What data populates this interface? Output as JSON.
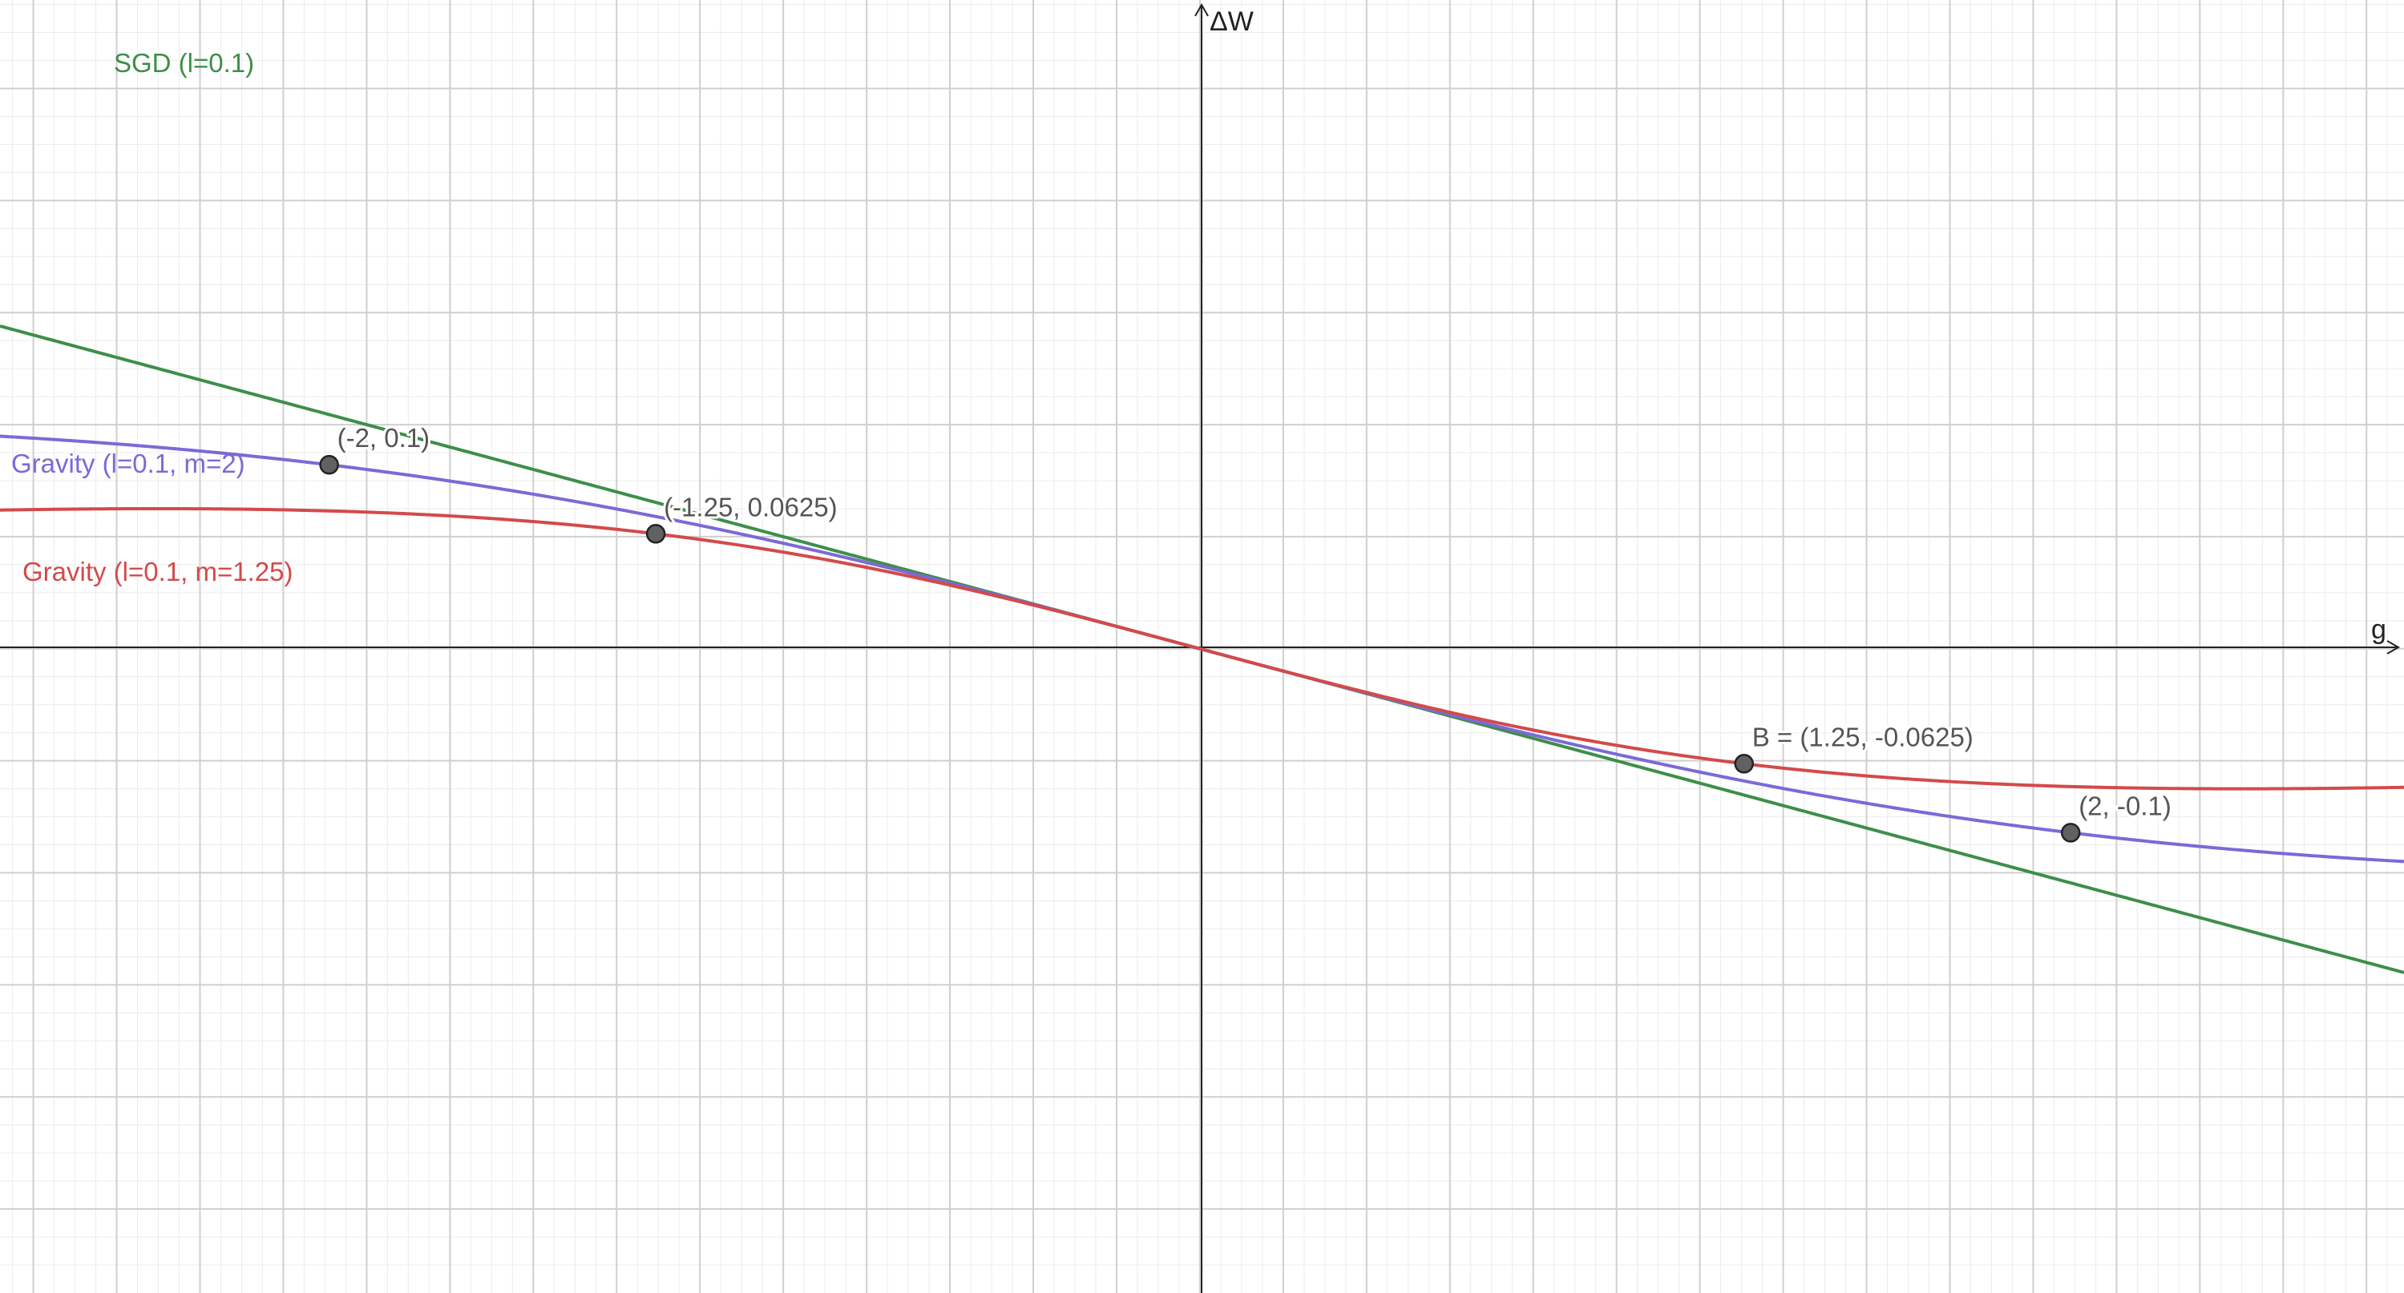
{
  "chart_data": {
    "type": "line",
    "xlabel": "g",
    "ylabel": "ΔW",
    "xlim": [
      -1.44,
      1.445
    ],
    "ylim": [
      -0.2875,
      0.2895
    ],
    "grid": true,
    "colors": {
      "sgd": "#3e8e4a",
      "gravity_m2": "#7b6ad6",
      "gravity_m125": "#d34a4a",
      "point_fill": "#616161",
      "grid_major": "#cfcfcf",
      "grid_minor": "#ececec",
      "axis": "#222222"
    },
    "series": [
      {
        "name": "SGD (l=0.1)",
        "id": "sgd",
        "formula": "-0.1 * g",
        "points": [
          [
            -1.44,
            0.144
          ],
          [
            0,
            0
          ],
          [
            1.445,
            -0.1445
          ]
        ]
      },
      {
        "name": "Gravity (l=0.1, m=2)",
        "id": "gravity_m2",
        "formula": "-0.1 * g / (1 + (g/2)^2)",
        "points": [
          [
            -1.44,
            0.0948
          ],
          [
            -1.0,
            0.08
          ],
          [
            -0.5,
            0.0471
          ],
          [
            0,
            0
          ],
          [
            0.5,
            -0.0471
          ],
          [
            1.0,
            -0.08
          ],
          [
            1.445,
            -0.095
          ]
        ]
      },
      {
        "name": "Gravity (l=0.1, m=1.25)",
        "id": "gravity_m125",
        "formula": "-0.1 * g / (1 + (g/1.25)^2)",
        "points": [
          [
            -1.44,
            0.0617
          ],
          [
            -1.25,
            0.0625
          ],
          [
            -0.5,
            0.0431
          ],
          [
            0,
            0
          ],
          [
            0.5,
            -0.0431
          ],
          [
            1.25,
            -0.0625
          ],
          [
            1.445,
            -0.0617
          ]
        ]
      }
    ],
    "points": [
      {
        "id": "p1",
        "x": -2,
        "y": 0.1,
        "label": "(-2, 0.1)"
      },
      {
        "id": "p2",
        "x": -1.25,
        "y": 0.0625,
        "label": "(-1.25, 0.0625)"
      },
      {
        "id": "p3",
        "x": 1.25,
        "y": -0.0625,
        "label": "B = (1.25, -0.0625)"
      },
      {
        "id": "p4",
        "x": 2,
        "y": -0.1,
        "label": "(2, -0.1)"
      }
    ]
  }
}
